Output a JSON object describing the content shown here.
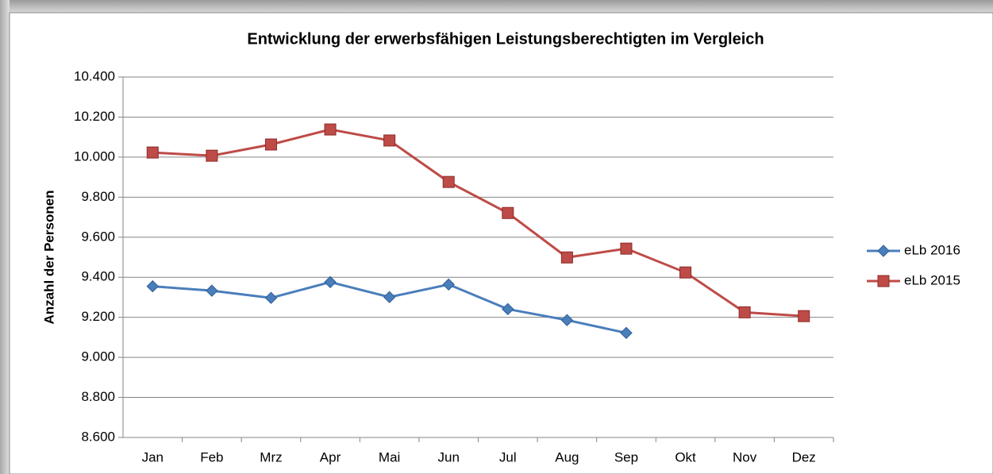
{
  "chart_data": {
    "type": "line",
    "title": "Entwicklung der erwerbsfähigen Leistungsberechtigten im Vergleich",
    "y_label": "Anzahl der Personen",
    "categories": [
      "Jan",
      "Feb",
      "Mrz",
      "Apr",
      "Mai",
      "Jun",
      "Jul",
      "Aug",
      "Sep",
      "Okt",
      "Nov",
      "Dez"
    ],
    "series": [
      {
        "name": "eLb 2016",
        "color": "#4a7ebb",
        "marker": "diamond",
        "values": [
          9355,
          9333,
          9297,
          9376,
          9301,
          9364,
          9241,
          9186,
          9122,
          null,
          null,
          null
        ]
      },
      {
        "name": "eLb 2015",
        "color": "#be4b48",
        "marker": "square",
        "values": [
          10023,
          10007,
          10063,
          10138,
          10083,
          9876,
          9721,
          9499,
          9543,
          9424,
          9225,
          9206
        ]
      }
    ],
    "ylim": [
      8600,
      10400
    ],
    "yticks": [
      {
        "value": 8600,
        "label": "8.600"
      },
      {
        "value": 8800,
        "label": "8.800"
      },
      {
        "value": 9000,
        "label": "9.000"
      },
      {
        "value": 9200,
        "label": "9.200"
      },
      {
        "value": 9400,
        "label": "9.400"
      },
      {
        "value": 9600,
        "label": "9.600"
      },
      {
        "value": 9800,
        "label": "9.800"
      },
      {
        "value": 10000,
        "label": "10.000"
      },
      {
        "value": 10200,
        "label": "10.200"
      },
      {
        "value": 10400,
        "label": "10.400"
      }
    ],
    "grid": true,
    "legend": "right"
  }
}
